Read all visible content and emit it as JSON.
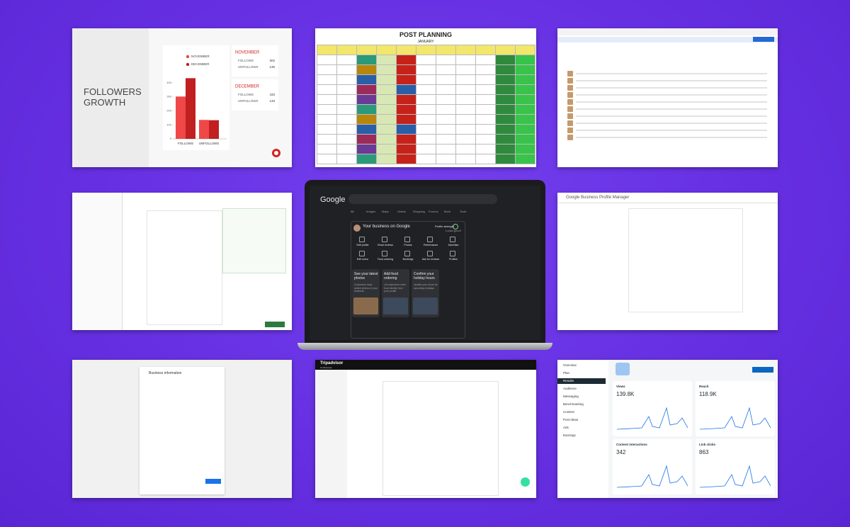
{
  "followers": {
    "type": "bar",
    "title": "FOLLOWERS GROWTH",
    "categories": [
      "FOLLOWS",
      "UNFOLLOWS"
    ],
    "series": [
      {
        "name": "NOVEMBER",
        "color": "#f04848",
        "values": [
          302,
          135
        ]
      },
      {
        "name": "DECEMBER",
        "color": "#c0201f",
        "values": [
          433,
          133
        ]
      }
    ],
    "ylim": [
      0,
      450
    ],
    "yticks": [
      0,
      100,
      200,
      300,
      400
    ]
  },
  "spreadsheet": {
    "title": "POST PLANNING",
    "month": "JANUARY"
  },
  "laptop": {
    "logo": "Google",
    "tabs": [
      "All",
      "Images",
      "Maps",
      "Videos",
      "Shopping",
      "Forums",
      "More",
      "Tools"
    ],
    "business_title": "Your business on Google",
    "profile_strength": "Profile strength",
    "strength_status": "Looks good!",
    "actions": [
      "Edit profile",
      "Read reviews",
      "Photos",
      "Performance",
      "Advertise",
      "Edit menu",
      "Food ordering",
      "Bookings",
      "Ask for reviews",
      "Profiles"
    ],
    "cards": [
      {
        "title": "See your latest photos",
        "text": "Customers have added photos of your business"
      },
      {
        "title": "Add food ordering",
        "text": "Let customers order food directly from your profile"
      },
      {
        "title": "Confirm your holiday hours",
        "text": "Update your hours for upcoming holidays"
      }
    ]
  },
  "profile_manager": {
    "title": "Google Business Profile Manager"
  },
  "business_info": {
    "title": "Business information"
  },
  "tripadvisor": {
    "logo": "Tripadvisor",
    "subtitle": "for Business"
  },
  "insights": {
    "nav": [
      "Overview",
      "Plan",
      "Results",
      "Audience",
      "Messaging",
      "Benchmarking",
      "Content",
      "Post Ideas",
      "Ads",
      "Earnings"
    ],
    "metrics": [
      {
        "label": "Views",
        "value": "139.8K"
      },
      {
        "label": "Reach",
        "value": "118.9K"
      },
      {
        "label": "Content interactions",
        "value": "342"
      },
      {
        "label": "Link clicks",
        "value": "863"
      }
    ]
  }
}
